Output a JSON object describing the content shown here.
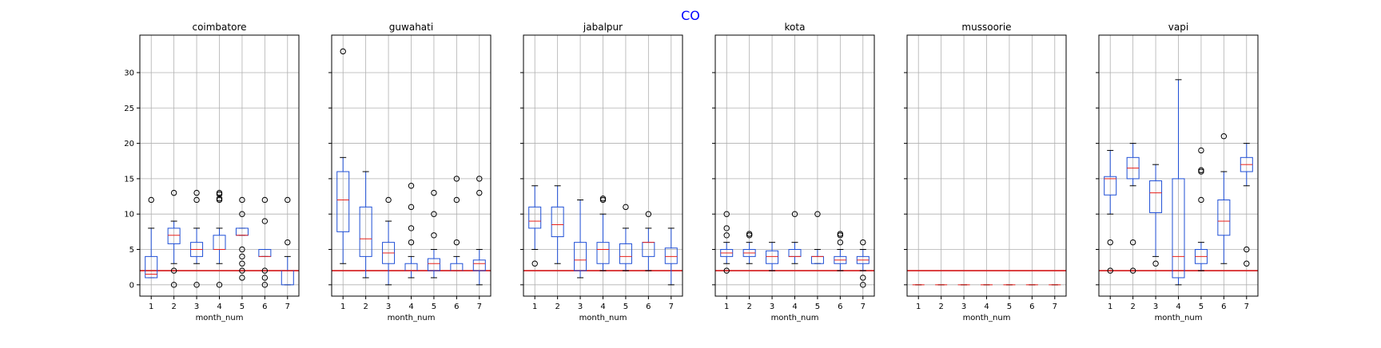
{
  "chart_data": {
    "type": "box",
    "title": "CO",
    "xlabel": "month_num",
    "ylabel": "",
    "categories": [
      "1",
      "2",
      "3",
      "4",
      "5",
      "6",
      "7"
    ],
    "ylim": [
      -1.6,
      35.3
    ],
    "yticks": [
      0,
      5,
      10,
      15,
      20,
      25,
      30
    ],
    "grid": true,
    "reference_line": 2,
    "colors": {
      "box": "#1f4fd6",
      "median": "#e8201a",
      "reference": "#d62728",
      "grid": "#b0b0b0",
      "whisker": "#000000",
      "title": "#0000ff"
    },
    "panels": [
      {
        "name": "coimbatore",
        "boxes": [
          {
            "month": 1,
            "whislo": 1,
            "q1": 1,
            "med": 1.5,
            "q3": 4,
            "whishi": 8,
            "fliers": [
              12
            ]
          },
          {
            "month": 2,
            "whislo": 3,
            "q1": 5.8,
            "med": 7,
            "q3": 8,
            "whishi": 9,
            "fliers": [
              13,
              2,
              0
            ]
          },
          {
            "month": 3,
            "whislo": 3,
            "q1": 4,
            "med": 5,
            "q3": 6,
            "whishi": 8,
            "fliers": [
              13,
              12,
              0
            ]
          },
          {
            "month": 4,
            "whislo": 3,
            "q1": 5,
            "med": 5,
            "q3": 7,
            "whishi": 8,
            "fliers": [
              13,
              12.8,
              12.2,
              12,
              0
            ]
          },
          {
            "month": 5,
            "whislo": 7,
            "q1": 7,
            "med": 7,
            "q3": 8,
            "whishi": 8,
            "fliers": [
              12,
              10,
              5,
              4,
              3,
              2,
              1
            ]
          },
          {
            "month": 6,
            "whislo": 4,
            "q1": 4,
            "med": 4,
            "q3": 5,
            "whishi": 5,
            "fliers": [
              12,
              9,
              2,
              1,
              0
            ]
          },
          {
            "month": 7,
            "whislo": 0,
            "q1": 0,
            "med": 2,
            "q3": 2,
            "whishi": 4,
            "fliers": [
              12,
              6
            ]
          }
        ]
      },
      {
        "name": "guwahati",
        "boxes": [
          {
            "month": 1,
            "whislo": 3,
            "q1": 7.5,
            "med": 12,
            "q3": 16,
            "whishi": 18,
            "fliers": [
              33
            ]
          },
          {
            "month": 2,
            "whislo": 1,
            "q1": 4,
            "med": 6.5,
            "q3": 11,
            "whishi": 16,
            "fliers": []
          },
          {
            "month": 3,
            "whislo": 0,
            "q1": 3,
            "med": 4.5,
            "q3": 6,
            "whishi": 9,
            "fliers": [
              12
            ]
          },
          {
            "month": 4,
            "whislo": 1,
            "q1": 2,
            "med": 2,
            "q3": 3,
            "whishi": 4,
            "fliers": [
              14,
              11,
              8,
              6
            ]
          },
          {
            "month": 5,
            "whislo": 1,
            "q1": 2,
            "med": 3,
            "q3": 3.7,
            "whishi": 5,
            "fliers": [
              13,
              10,
              7
            ]
          },
          {
            "month": 6,
            "whislo": 2,
            "q1": 2,
            "med": 2,
            "q3": 3,
            "whishi": 4,
            "fliers": [
              15,
              12,
              6
            ]
          },
          {
            "month": 7,
            "whislo": 0,
            "q1": 2,
            "med": 3,
            "q3": 3.5,
            "whishi": 5,
            "fliers": [
              15,
              13
            ]
          }
        ]
      },
      {
        "name": "jabalpur",
        "boxes": [
          {
            "month": 1,
            "whislo": 5,
            "q1": 8,
            "med": 9,
            "q3": 11,
            "whishi": 14,
            "fliers": [
              3
            ]
          },
          {
            "month": 2,
            "whislo": 3,
            "q1": 6.8,
            "med": 8.5,
            "q3": 11,
            "whishi": 14,
            "fliers": []
          },
          {
            "month": 3,
            "whislo": 1,
            "q1": 2,
            "med": 3.5,
            "q3": 6,
            "whishi": 12,
            "fliers": []
          },
          {
            "month": 4,
            "whislo": 2,
            "q1": 3,
            "med": 5,
            "q3": 6,
            "whishi": 10,
            "fliers": [
              12.2,
              12
            ]
          },
          {
            "month": 5,
            "whislo": 2,
            "q1": 3,
            "med": 4,
            "q3": 5.8,
            "whishi": 8,
            "fliers": [
              11
            ]
          },
          {
            "month": 6,
            "whislo": 2,
            "q1": 4,
            "med": 6,
            "q3": 6,
            "whishi": 8,
            "fliers": [
              10
            ]
          },
          {
            "month": 7,
            "whislo": 0,
            "q1": 3,
            "med": 4,
            "q3": 5.2,
            "whishi": 8,
            "fliers": []
          }
        ]
      },
      {
        "name": "kota",
        "boxes": [
          {
            "month": 1,
            "whislo": 3,
            "q1": 4,
            "med": 4.5,
            "q3": 5,
            "whishi": 6,
            "fliers": [
              10,
              8,
              7,
              2
            ]
          },
          {
            "month": 2,
            "whislo": 3,
            "q1": 4,
            "med": 4.5,
            "q3": 5,
            "whishi": 6,
            "fliers": [
              7.2,
              7
            ]
          },
          {
            "month": 3,
            "whislo": 2,
            "q1": 3,
            "med": 4,
            "q3": 4.8,
            "whishi": 6,
            "fliers": []
          },
          {
            "month": 4,
            "whislo": 3,
            "q1": 4,
            "med": 4,
            "q3": 5,
            "whishi": 6,
            "fliers": [
              10
            ]
          },
          {
            "month": 5,
            "whislo": 3,
            "q1": 3,
            "med": 4,
            "q3": 4,
            "whishi": 5,
            "fliers": [
              10
            ]
          },
          {
            "month": 6,
            "whislo": 2,
            "q1": 3,
            "med": 3.5,
            "q3": 4,
            "whishi": 5,
            "fliers": [
              7.2,
              7,
              6
            ]
          },
          {
            "month": 7,
            "whislo": 2,
            "q1": 3,
            "med": 3.5,
            "q3": 4,
            "whishi": 5,
            "fliers": [
              6,
              1,
              0
            ]
          }
        ]
      },
      {
        "name": "mussoorie",
        "boxes": [
          {
            "month": 1,
            "whislo": 0,
            "q1": 0,
            "med": 0,
            "q3": 0,
            "whishi": 0,
            "fliers": []
          },
          {
            "month": 2,
            "whislo": 0,
            "q1": 0,
            "med": 0,
            "q3": 0,
            "whishi": 0,
            "fliers": []
          },
          {
            "month": 3,
            "whislo": 0,
            "q1": 0,
            "med": 0,
            "q3": 0,
            "whishi": 0,
            "fliers": []
          },
          {
            "month": 4,
            "whislo": 0,
            "q1": 0,
            "med": 0,
            "q3": 0,
            "whishi": 0,
            "fliers": []
          },
          {
            "month": 5,
            "whislo": 0,
            "q1": 0,
            "med": 0,
            "q3": 0,
            "whishi": 0,
            "fliers": []
          },
          {
            "month": 6,
            "whislo": 0,
            "q1": 0,
            "med": 0,
            "q3": 0,
            "whishi": 0,
            "fliers": []
          },
          {
            "month": 7,
            "whislo": 0,
            "q1": 0,
            "med": 0,
            "q3": 0,
            "whishi": 0,
            "fliers": []
          }
        ]
      },
      {
        "name": "vapi",
        "boxes": [
          {
            "month": 1,
            "whislo": 10,
            "q1": 12.7,
            "med": 15,
            "q3": 15.3,
            "whishi": 19,
            "fliers": [
              6,
              2
            ]
          },
          {
            "month": 2,
            "whislo": 14,
            "q1": 15,
            "med": 16.5,
            "q3": 18,
            "whishi": 20,
            "fliers": [
              6,
              2
            ]
          },
          {
            "month": 3,
            "whislo": 4,
            "q1": 10.2,
            "med": 13,
            "q3": 14.7,
            "whishi": 17,
            "fliers": [
              3
            ]
          },
          {
            "month": 4,
            "whislo": 0,
            "q1": 1,
            "med": 4,
            "q3": 15,
            "whishi": 29,
            "fliers": []
          },
          {
            "month": 5,
            "whislo": 2,
            "q1": 3,
            "med": 4,
            "q3": 5,
            "whishi": 6,
            "fliers": [
              19,
              16.2,
              16,
              12
            ]
          },
          {
            "month": 6,
            "whislo": 3,
            "q1": 7,
            "med": 9,
            "q3": 12,
            "whishi": 16,
            "fliers": [
              21
            ]
          },
          {
            "month": 7,
            "whislo": 14,
            "q1": 16,
            "med": 17,
            "q3": 18,
            "whishi": 20,
            "fliers": [
              5,
              3
            ]
          }
        ]
      }
    ]
  }
}
